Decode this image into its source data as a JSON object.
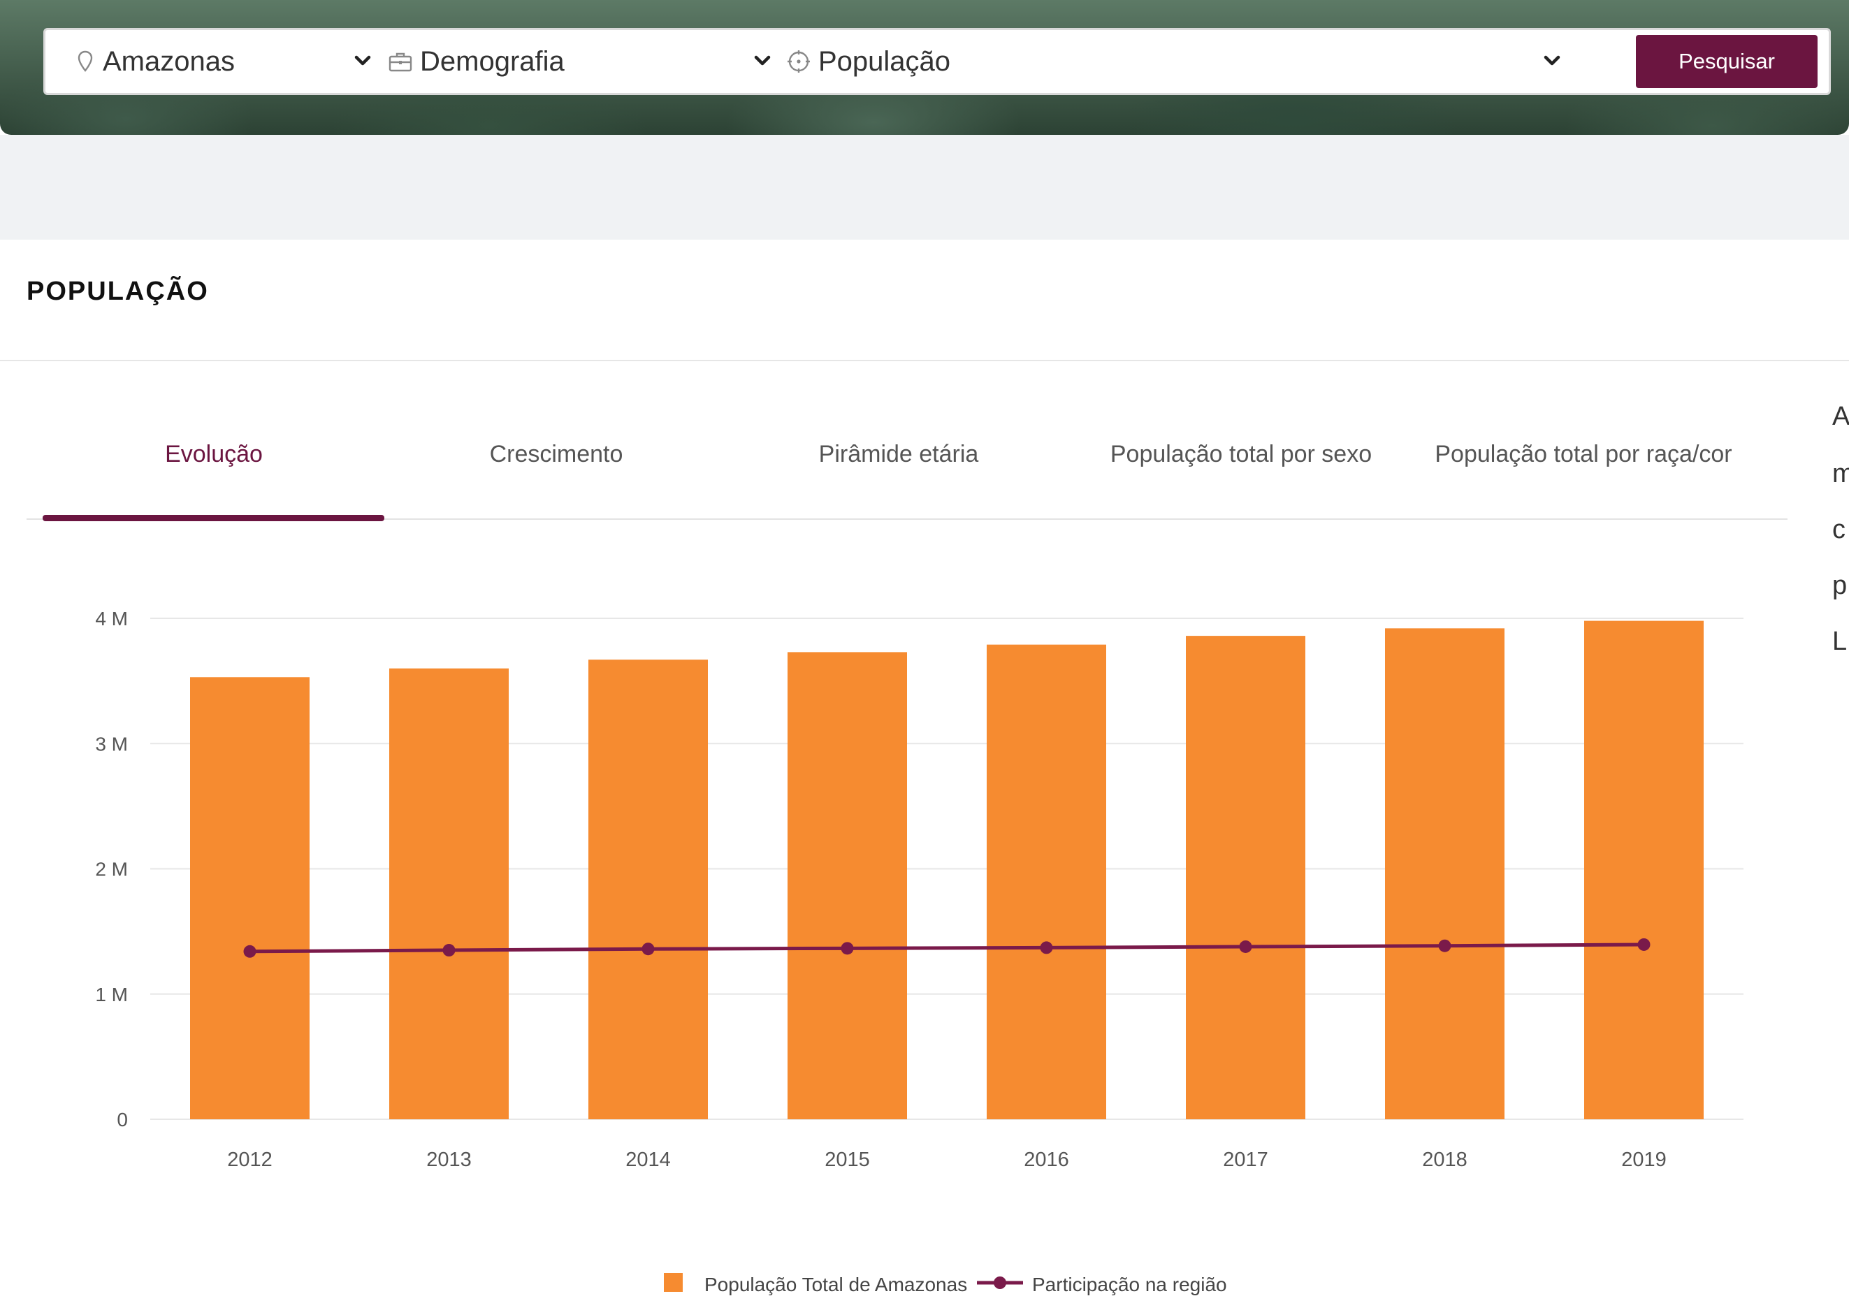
{
  "search": {
    "location": "Amazonas",
    "theme": "Demografia",
    "indicator": "População",
    "button_label": "Pesquisar"
  },
  "icons": {
    "location": "map-pin-icon",
    "theme": "briefcase-icon",
    "indicator": "target-icon",
    "dropdown": "chevron-down-icon"
  },
  "section": {
    "title": "POPULAÇÃO"
  },
  "tabs": [
    {
      "label": "Evolução",
      "active": true
    },
    {
      "label": "Crescimento",
      "active": false
    },
    {
      "label": "Pirâmide etária",
      "active": false
    },
    {
      "label": "População total por sexo",
      "active": false
    },
    {
      "label": "População total por raça/cor",
      "active": false
    }
  ],
  "side_text": [
    "A",
    "m",
    "c",
    "p",
    "L"
  ],
  "colors": {
    "accent": "#6b1540",
    "bar": "#f68b30",
    "line": "#7a1a4a"
  },
  "chart_data": {
    "type": "bar",
    "categories": [
      "2012",
      "2013",
      "2014",
      "2015",
      "2016",
      "2017",
      "2018",
      "2019"
    ],
    "series": [
      {
        "name": "População Total de Amazonas",
        "type": "bar",
        "values": [
          3530000,
          3600000,
          3670000,
          3730000,
          3790000,
          3860000,
          3920000,
          3980000
        ]
      },
      {
        "name": "Participação na região",
        "type": "line",
        "values": [
          1340000,
          1350000,
          1360000,
          1365000,
          1370000,
          1378000,
          1385000,
          1395000
        ]
      }
    ],
    "ylim": [
      0,
      4000000
    ],
    "yticks": [
      {
        "value": 0,
        "label": "0"
      },
      {
        "value": 1000000,
        "label": "1 M"
      },
      {
        "value": 2000000,
        "label": "2 M"
      },
      {
        "value": 3000000,
        "label": "3 M"
      },
      {
        "value": 4000000,
        "label": "4 M"
      }
    ],
    "grid": true,
    "legend_position": "bottom-center",
    "title": "",
    "xlabel": "",
    "ylabel": ""
  }
}
